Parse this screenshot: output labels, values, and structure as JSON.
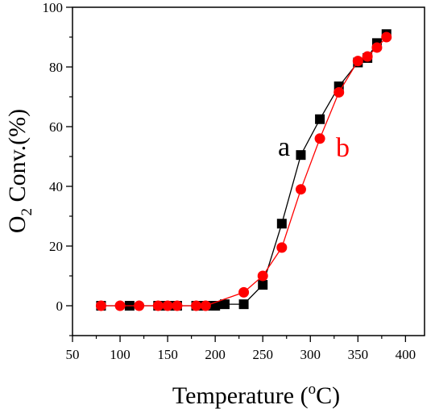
{
  "chart_data": {
    "type": "line",
    "xlabel": "Temperature (",
    "xlabel_sup": "o",
    "xlabel_tail": "C)",
    "ylabel": "O",
    "ylabel_sub": "2",
    "ylabel_tail": " Conv.(%)",
    "xlim": [
      50,
      420
    ],
    "ylim": [
      -10,
      100
    ],
    "x_ticks": [
      50,
      100,
      150,
      200,
      250,
      300,
      350,
      400
    ],
    "x_tick_labels": [
      "50",
      "100",
      "150",
      "200",
      "250",
      "300",
      "350",
      "400"
    ],
    "y_ticks": [
      0,
      20,
      40,
      60,
      80,
      100
    ],
    "y_tick_labels": [
      "0",
      "20",
      "40",
      "60",
      "80",
      "100"
    ],
    "grid": false,
    "series": [
      {
        "name": "a",
        "marker": "square",
        "color": "#000000",
        "x": [
          80,
          110,
          140,
          150,
          160,
          180,
          190,
          200,
          210,
          230,
          250,
          270,
          290,
          310,
          330,
          350,
          360,
          370,
          380
        ],
        "y": [
          0,
          0,
          0,
          0,
          0,
          0,
          0,
          0,
          0.5,
          0.5,
          7,
          27.5,
          50.5,
          62.5,
          73.5,
          81.5,
          83,
          88,
          91
        ]
      },
      {
        "name": "b",
        "marker": "circle",
        "color": "#ff0000",
        "x": [
          80,
          100,
          120,
          140,
          150,
          160,
          180,
          190,
          230,
          250,
          270,
          290,
          310,
          330,
          350,
          360,
          370,
          380
        ],
        "y": [
          0,
          0,
          0,
          0,
          0,
          0,
          0,
          0,
          4.5,
          10,
          19.5,
          39,
          56,
          71.5,
          82,
          83.5,
          86.5,
          90
        ]
      }
    ]
  }
}
